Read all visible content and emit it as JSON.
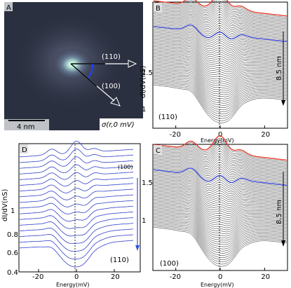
{
  "chart_data": [
    {
      "panel": "A",
      "type": "heatmap",
      "label_A": "A",
      "arrow_110": "(110)",
      "arrow_100": "(100)",
      "scalebar_label": "4 nm",
      "map_label": "σ(r,0 mV)",
      "colors": {
        "background": "#2b3040",
        "center": "#e8fff4",
        "scalebar": "#ffffff"
      }
    },
    {
      "panel": "B",
      "type": "line",
      "label_B": "B",
      "xlabel": "Energy(mV)",
      "ylabel": "dI/dV(nS)",
      "xlim": [
        -30,
        30
      ],
      "xticks": [
        -20,
        0,
        20
      ],
      "yticks_labels": [
        "1",
        "1.5"
      ],
      "corner_label": "(110)",
      "distance_label": "8.5 nm",
      "n_curves": 60,
      "highlight": [
        {
          "index": 0,
          "color": "#e03020"
        },
        {
          "index": 18,
          "color": "#2030c0"
        }
      ]
    },
    {
      "panel": "C",
      "type": "line",
      "label_C": "C",
      "xlabel": "Energy(mV)",
      "xlim": [
        -30,
        30
      ],
      "xticks": [
        -20,
        0,
        20
      ],
      "yticks_labels": [
        "1",
        "1.5"
      ],
      "corner_label": "(100)",
      "distance_label": "8.5 nm",
      "n_curves": 60,
      "highlight": [
        {
          "index": 0,
          "color": "#e03020"
        },
        {
          "index": 18,
          "color": "#2030c0"
        }
      ]
    },
    {
      "panel": "D",
      "type": "line",
      "label_D": "D",
      "xlabel": "Energy(mV)",
      "ylabel": "dI/dV(nS)",
      "xlim": [
        -30,
        30
      ],
      "xticks": [
        -20,
        0,
        20
      ],
      "yticks_labels": [
        "0.4",
        "0.6",
        "0.8",
        "1"
      ],
      "top_label": "(100)",
      "bottom_label": "(110)",
      "n_curves": 17,
      "curve_color": "#3040c8"
    }
  ]
}
